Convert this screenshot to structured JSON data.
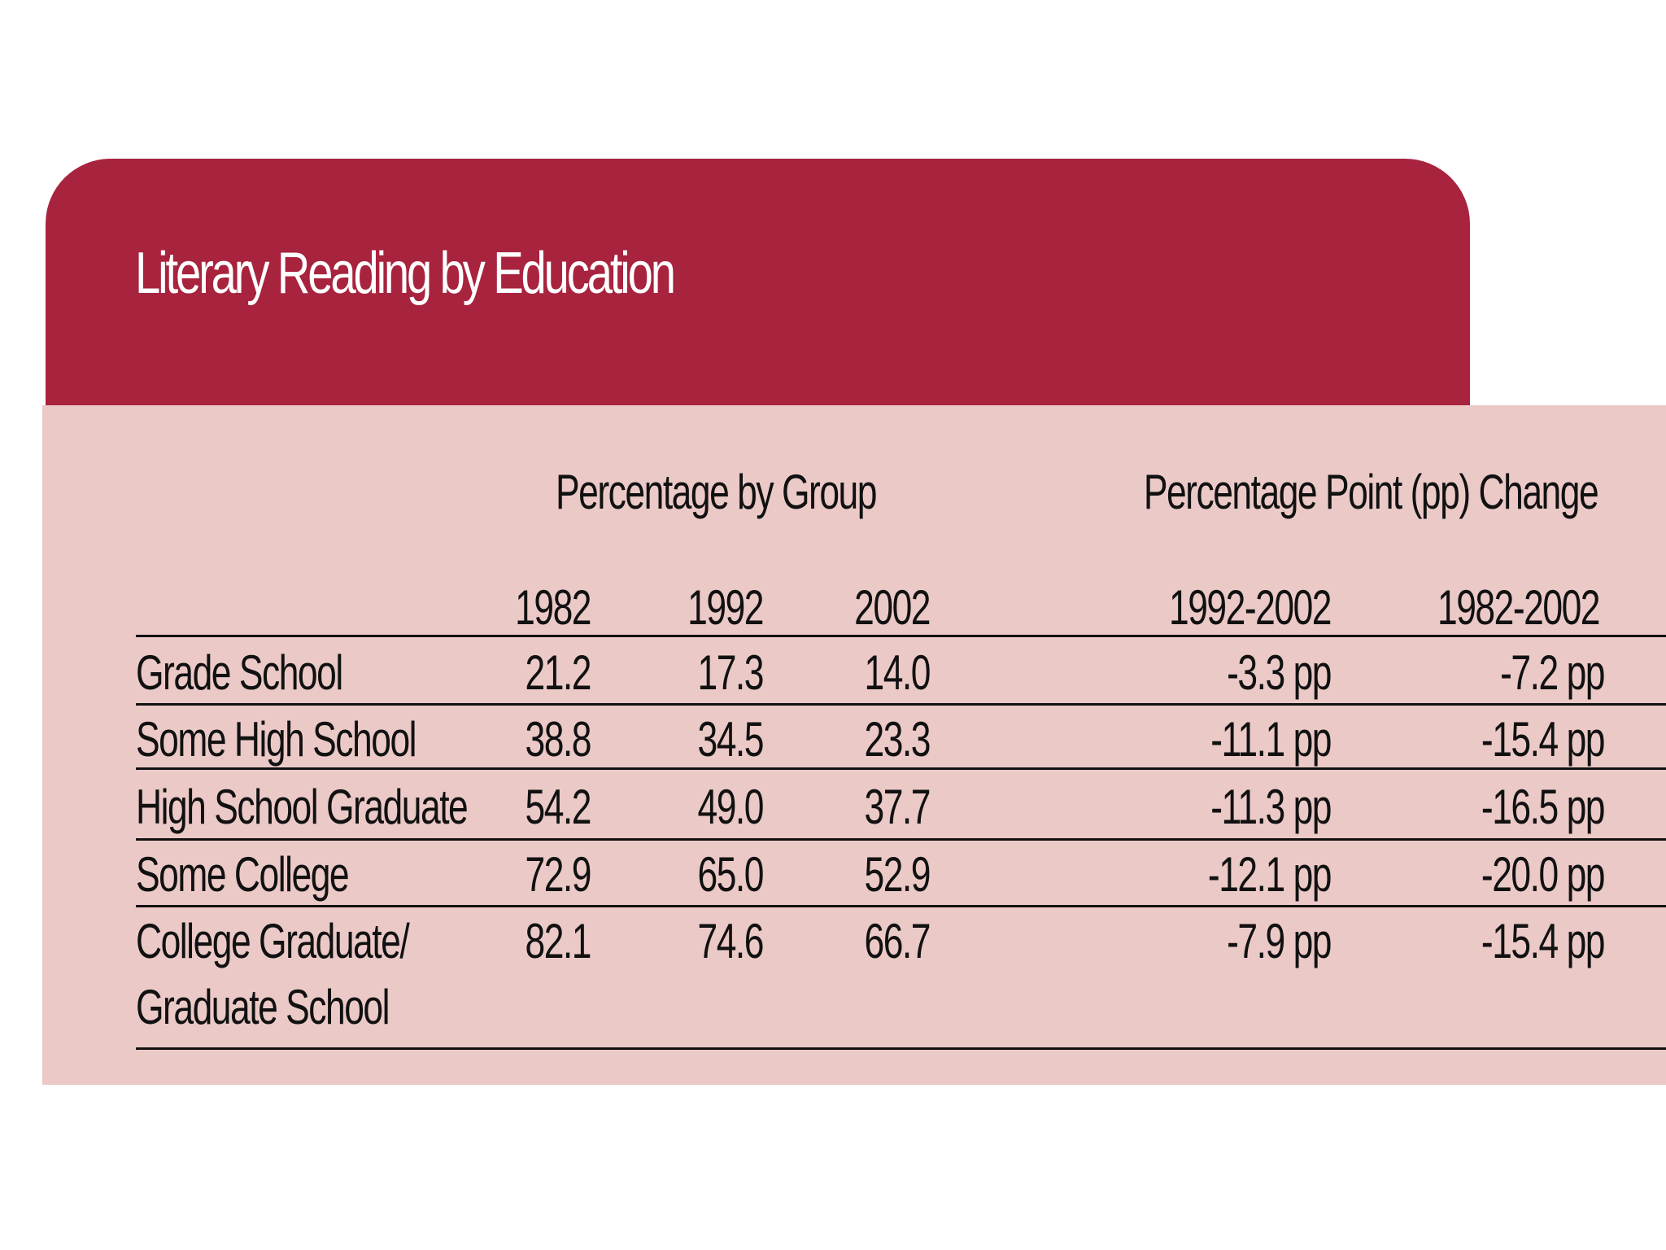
{
  "title": "Literary Reading by Education",
  "group_headers": {
    "percentage_by_group": "Percentage by Group",
    "pp_change": "Percentage Point (pp) Change"
  },
  "columns": {
    "y1982": "1982",
    "y1992": "1992",
    "y2002": "2002",
    "c1992_2002": "1992-2002",
    "c1982_2002": "1982-2002"
  },
  "rows": [
    {
      "label": "Grade School",
      "v1982": "21.2",
      "v1992": "17.3",
      "v2002": "14.0",
      "c1992_2002": "-3.3 pp",
      "c1982_2002": "-7.2 pp"
    },
    {
      "label": "Some High School",
      "v1982": "38.8",
      "v1992": "34.5",
      "v2002": "23.3",
      "c1992_2002": "-11.1 pp",
      "c1982_2002": "-15.4 pp"
    },
    {
      "label": "High School Graduate",
      "v1982": "54.2",
      "v1992": "49.0",
      "v2002": "37.7",
      "c1992_2002": "-11.3 pp",
      "c1982_2002": "-16.5 pp"
    },
    {
      "label": "Some College",
      "v1982": "72.9",
      "v1992": "65.0",
      "v2002": "52.9",
      "c1992_2002": "-12.1 pp",
      "c1982_2002": "-20.0 pp"
    },
    {
      "label": "College Graduate/",
      "label_line2": "Graduate School",
      "v1982": "82.1",
      "v1992": "74.6",
      "v2002": "66.7",
      "c1992_2002": "-7.9 pp",
      "c1982_2002": "-15.4 pp"
    }
  ]
}
